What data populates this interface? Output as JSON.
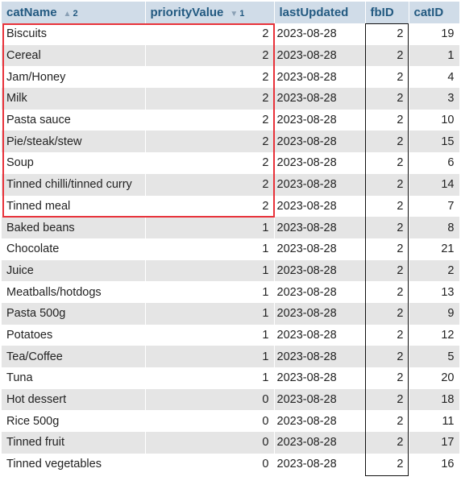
{
  "columns": {
    "catName": {
      "label": "catName",
      "sort_order": "2"
    },
    "priorityValue": {
      "label": "priorityValue",
      "sort_order": "1"
    },
    "lastUpdated": {
      "label": "lastUpdated"
    },
    "fbID": {
      "label": "fbID"
    },
    "catID": {
      "label": "catID"
    }
  },
  "rows": [
    {
      "catName": "Biscuits",
      "priorityValue": "2",
      "lastUpdated": "2023-08-28",
      "fbID": "2",
      "catID": "19"
    },
    {
      "catName": "Cereal",
      "priorityValue": "2",
      "lastUpdated": "2023-08-28",
      "fbID": "2",
      "catID": "1"
    },
    {
      "catName": "Jam/Honey",
      "priorityValue": "2",
      "lastUpdated": "2023-08-28",
      "fbID": "2",
      "catID": "4"
    },
    {
      "catName": "Milk",
      "priorityValue": "2",
      "lastUpdated": "2023-08-28",
      "fbID": "2",
      "catID": "3"
    },
    {
      "catName": "Pasta sauce",
      "priorityValue": "2",
      "lastUpdated": "2023-08-28",
      "fbID": "2",
      "catID": "10"
    },
    {
      "catName": "Pie/steak/stew",
      "priorityValue": "2",
      "lastUpdated": "2023-08-28",
      "fbID": "2",
      "catID": "15"
    },
    {
      "catName": "Soup",
      "priorityValue": "2",
      "lastUpdated": "2023-08-28",
      "fbID": "2",
      "catID": "6"
    },
    {
      "catName": "Tinned chilli/tinned curry",
      "priorityValue": "2",
      "lastUpdated": "2023-08-28",
      "fbID": "2",
      "catID": "14"
    },
    {
      "catName": "Tinned meal",
      "priorityValue": "2",
      "lastUpdated": "2023-08-28",
      "fbID": "2",
      "catID": "7"
    },
    {
      "catName": "Baked beans",
      "priorityValue": "1",
      "lastUpdated": "2023-08-28",
      "fbID": "2",
      "catID": "8"
    },
    {
      "catName": "Chocolate",
      "priorityValue": "1",
      "lastUpdated": "2023-08-28",
      "fbID": "2",
      "catID": "21"
    },
    {
      "catName": "Juice",
      "priorityValue": "1",
      "lastUpdated": "2023-08-28",
      "fbID": "2",
      "catID": "2"
    },
    {
      "catName": "Meatballs/hotdogs",
      "priorityValue": "1",
      "lastUpdated": "2023-08-28",
      "fbID": "2",
      "catID": "13"
    },
    {
      "catName": "Pasta 500g",
      "priorityValue": "1",
      "lastUpdated": "2023-08-28",
      "fbID": "2",
      "catID": "9"
    },
    {
      "catName": "Potatoes",
      "priorityValue": "1",
      "lastUpdated": "2023-08-28",
      "fbID": "2",
      "catID": "12"
    },
    {
      "catName": "Tea/Coffee",
      "priorityValue": "1",
      "lastUpdated": "2023-08-28",
      "fbID": "2",
      "catID": "5"
    },
    {
      "catName": "Tuna",
      "priorityValue": "1",
      "lastUpdated": "2023-08-28",
      "fbID": "2",
      "catID": "20"
    },
    {
      "catName": "Hot dessert",
      "priorityValue": "0",
      "lastUpdated": "2023-08-28",
      "fbID": "2",
      "catID": "18"
    },
    {
      "catName": "Rice 500g",
      "priorityValue": "0",
      "lastUpdated": "2023-08-28",
      "fbID": "2",
      "catID": "11"
    },
    {
      "catName": "Tinned fruit",
      "priorityValue": "0",
      "lastUpdated": "2023-08-28",
      "fbID": "2",
      "catID": "17"
    },
    {
      "catName": "Tinned vegetables",
      "priorityValue": "0",
      "lastUpdated": "2023-08-28",
      "fbID": "2",
      "catID": "16"
    }
  ],
  "colors": {
    "header_bg": "#d0dce8",
    "header_text": "#235a81",
    "row_alt": "#e5e5e5",
    "highlight_border": "#e8323a",
    "column_box_border": "#111111"
  }
}
